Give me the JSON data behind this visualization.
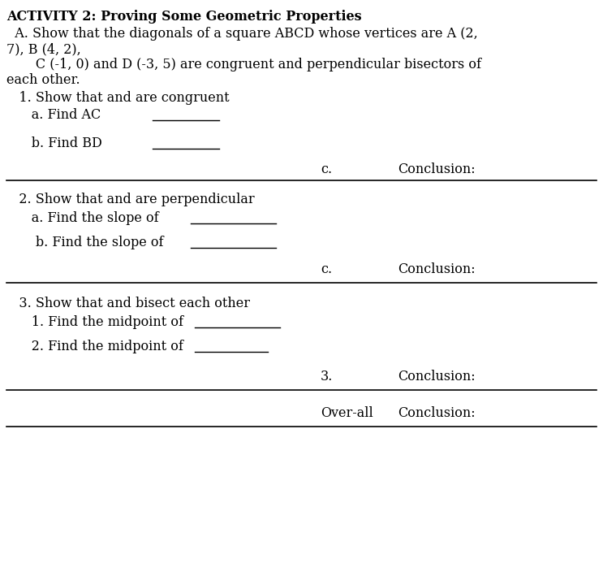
{
  "bg_color": "#ffffff",
  "text_color": "#000000",
  "title": "ACTIVITY 2: Proving Some Geometric Properties",
  "line1": "  A. Show that the diagonals of a square ABCD whose vertices are A (2,",
  "line2": "7), B (4, 2),",
  "line3": "       C (-1, 0) and D (-3, 5) are congruent and perpendicular bisectors of",
  "line4": "each other.",
  "sec1_head": "   1. Show that and are congruent",
  "sec1a": "      a. Find AC",
  "sec1b": "      b. Find BD",
  "sec1c_label": "c.",
  "sec1c_text": "Conclusion:",
  "sec2_head": "   2. Show that and are perpendicular",
  "sec2a": "      a. Find the slope of",
  "sec2b": "       b. Find the slope of",
  "sec2c_label": "c.",
  "sec2c_text": "Conclusion:",
  "sec3_head": "   3. Show that and bisect each other",
  "sec3a": "      1. Find the midpoint of",
  "sec3b": "      2. Find the midpoint of",
  "sec3c_label": "3.",
  "sec3c_text": "Conclusion:",
  "overall_label": "Over-all",
  "overall_text": "Conclusion:",
  "underline_color": "#000000",
  "title_fontsize": 11.5,
  "body_fontsize": 11.5
}
